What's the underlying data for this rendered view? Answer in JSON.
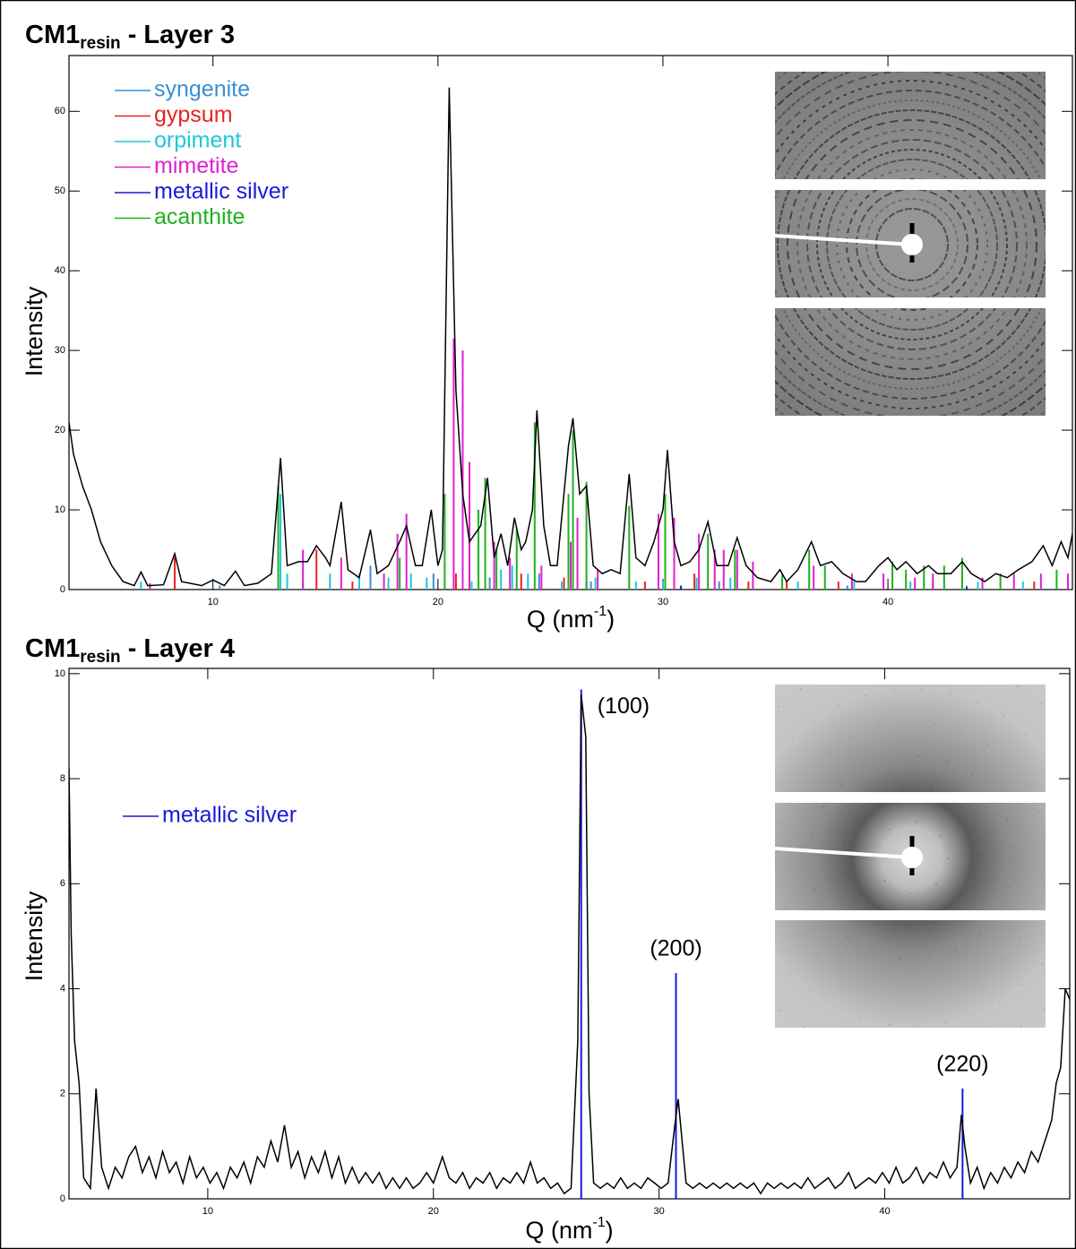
{
  "chart_data": [
    {
      "type": "line",
      "title": {
        "main": "CM1",
        "sub": "resin",
        "rest": " - Layer 3"
      },
      "x_label": {
        "main": "Q (nm",
        "sup": "-1",
        "rest": ")"
      },
      "y_label": "Intensity",
      "xlim": [
        3.6,
        48.2
      ],
      "ylim": [
        0,
        67
      ],
      "xticks": [
        10,
        20,
        30,
        40
      ],
      "yticks": [
        0,
        10,
        20,
        30,
        40,
        50,
        60
      ],
      "legend": "upper left",
      "series": [
        {
          "color": "#000000",
          "x": [
            3.6,
            3.8,
            4.2,
            4.6,
            5.0,
            5.5,
            6.0,
            6.5,
            6.8,
            7.1,
            7.8,
            8.3,
            8.6,
            9.5,
            10.0,
            10.5,
            11.0,
            11.4,
            12.0,
            12.6,
            13.0,
            13.3,
            13.8,
            14.2,
            14.6,
            15.0,
            15.2,
            15.7,
            16.0,
            16.5,
            17.0,
            17.3,
            17.8,
            18.3,
            18.6,
            19.0,
            19.3,
            19.7,
            20.0,
            20.2,
            20.5,
            20.8,
            21.1,
            21.4,
            21.9,
            22.2,
            22.5,
            22.8,
            23.1,
            23.4,
            23.7,
            23.9,
            24.2,
            24.4,
            24.7,
            25.0,
            25.3,
            25.8,
            26.0,
            26.3,
            26.6,
            26.9,
            27.3,
            27.7,
            28.1,
            28.5,
            28.8,
            29.2,
            29.6,
            30.0,
            30.2,
            30.5,
            30.8,
            31.2,
            31.6,
            32.0,
            32.4,
            32.9,
            33.3,
            33.7,
            34.2,
            34.8,
            35.2,
            35.5,
            36.0,
            36.6,
            37.0,
            37.5,
            38.0,
            38.6,
            39.0,
            39.6,
            40.0,
            40.4,
            40.8,
            41.3,
            41.8,
            42.2,
            42.8,
            43.3,
            43.7,
            44.3,
            44.8,
            45.3,
            45.8,
            46.4,
            46.9,
            47.3,
            47.7,
            48.0,
            48.2
          ],
          "values": [
            21,
            17,
            13,
            10,
            6,
            3,
            1,
            0.5,
            2.2,
            0.5,
            0.6,
            4.5,
            1,
            0.5,
            1.2,
            0.5,
            2.3,
            0.5,
            0.8,
            2,
            16.5,
            3,
            3.5,
            3.5,
            5.5,
            4,
            3,
            11,
            2.5,
            1.5,
            7.5,
            2,
            3,
            6,
            8,
            3,
            3,
            10,
            3,
            5,
            63,
            25,
            12,
            6,
            8,
            14,
            4,
            7,
            3,
            9,
            5,
            6,
            10,
            22.5,
            8,
            3,
            3,
            18,
            21.5,
            12,
            13,
            3,
            2,
            2.5,
            2,
            14.5,
            4,
            3,
            6,
            10,
            17.5,
            6,
            3,
            3.5,
            5,
            8.5,
            3,
            3,
            6.5,
            3,
            1.5,
            1,
            2.5,
            1,
            2.5,
            6,
            3,
            3.5,
            2,
            1,
            1,
            3,
            4,
            2.5,
            3.5,
            2,
            3,
            2,
            2,
            3.5,
            2,
            1,
            2,
            1.5,
            2.5,
            3.5,
            5.5,
            3,
            6,
            4,
            7
          ]
        },
        {
          "name": "syngenite",
          "color": "#3a8fd0",
          "type": "stem",
          "x": [
            10.3,
            14.0,
            17.0,
            19.8,
            22.3,
            24.5,
            26.8,
            30.5,
            32.5,
            38.2,
            43.5
          ],
          "values": [
            0.5,
            1,
            3,
            2,
            1.5,
            2,
            1,
            1.5,
            1,
            0.5,
            0.5
          ]
        },
        {
          "name": "gypsum",
          "color": "#e8231f",
          "type": "stem",
          "x": [
            8.3,
            14.6,
            16.2,
            20.8,
            23.7,
            25.6,
            29.2,
            31.4,
            33.8,
            35.5,
            37.8,
            42.0,
            46.5
          ],
          "values": [
            4,
            5,
            1,
            2,
            2,
            1.5,
            1,
            2,
            1,
            1,
            1,
            1,
            1
          ]
        },
        {
          "name": "orpiment",
          "color": "#1ec8d8",
          "type": "stem",
          "x": [
            6.8,
            13.0,
            13.3,
            15.2,
            16.5,
            17.8,
            18.8,
            19.5,
            21.5,
            22.8,
            23.3,
            24.0,
            25.5,
            27.0,
            28.8,
            30.0,
            31.5,
            33.0,
            36.0,
            38.5,
            41.0,
            44.0,
            46.0
          ],
          "values": [
            1,
            12,
            2,
            2,
            2,
            1.5,
            2,
            1.5,
            1,
            2.5,
            3,
            2,
            1,
            1.5,
            1,
            1,
            1.5,
            1.5,
            1,
            1,
            1,
            1,
            1
          ]
        },
        {
          "name": "mimetite",
          "color": "#e020d0",
          "type": "stem",
          "x": [
            7.2,
            14.0,
            15.7,
            17.6,
            18.2,
            18.6,
            20.7,
            21.1,
            21.4,
            22.5,
            23.2,
            24.6,
            25.9,
            26.2,
            27.1,
            29.8,
            30.5,
            31.6,
            32.3,
            32.7,
            33.3,
            34.0,
            36.7,
            38.4,
            39.8,
            41.2,
            42.0,
            44.2,
            45.6,
            46.8,
            48.0
          ],
          "values": [
            0.8,
            5,
            4,
            2,
            7,
            9.5,
            31.5,
            30,
            16,
            6,
            4,
            3,
            6,
            9,
            2.5,
            9.5,
            9,
            7,
            5,
            5,
            5,
            3.5,
            3,
            2,
            2,
            1.5,
            2,
            1.5,
            2,
            2,
            2
          ]
        },
        {
          "name": "metallic silver",
          "color": "#1a1ad8",
          "type": "stem",
          "x": [
            26.6,
            30.8,
            43.5
          ],
          "values": [
            1,
            0.5,
            0.3
          ]
        },
        {
          "name": "acanthite",
          "color": "#20b020",
          "type": "stem",
          "x": [
            12.9,
            18.3,
            20.3,
            21.8,
            22.1,
            22.6,
            23.5,
            24.3,
            25.8,
            26.0,
            26.6,
            28.5,
            30.1,
            32.0,
            33.2,
            35.3,
            36.5,
            37.2,
            40.2,
            40.8,
            41.6,
            42.5,
            43.3,
            45.0,
            47.5
          ],
          "values": [
            13,
            4,
            12,
            10,
            14,
            5,
            7.5,
            21,
            12,
            20,
            13.5,
            10.5,
            12,
            7,
            5,
            2,
            5,
            3,
            3.5,
            2.5,
            3,
            3,
            4,
            2,
            2.5
          ]
        }
      ]
    },
    {
      "type": "line",
      "title": {
        "main": "CM1",
        "sub": "resin",
        "rest": " - Layer 4"
      },
      "x_label": {
        "main": "Q (nm",
        "sup": "-1",
        "rest": ")"
      },
      "y_label": "Intensity",
      "xlim": [
        3.85,
        48.2
      ],
      "ylim": [
        0,
        10.1
      ],
      "xticks": [
        10,
        20,
        30,
        40
      ],
      "yticks": [
        0,
        2,
        4,
        6,
        8,
        10
      ],
      "legend": "upper left",
      "annotations": [
        "(100)",
        "(200)",
        "(220)"
      ],
      "series": [
        {
          "color": "#000000",
          "x": [
            3.85,
            3.95,
            4.1,
            4.3,
            4.5,
            4.8,
            5.05,
            5.3,
            5.6,
            5.9,
            6.2,
            6.5,
            6.8,
            7.1,
            7.4,
            7.7,
            8.0,
            8.3,
            8.6,
            8.9,
            9.2,
            9.5,
            9.8,
            10.1,
            10.4,
            10.7,
            11.0,
            11.3,
            11.6,
            11.9,
            12.2,
            12.5,
            12.8,
            13.1,
            13.4,
            13.7,
            14.0,
            14.3,
            14.6,
            14.9,
            15.2,
            15.5,
            15.8,
            16.1,
            16.4,
            16.7,
            17.0,
            17.3,
            17.6,
            17.9,
            18.2,
            18.5,
            18.8,
            19.1,
            19.4,
            19.7,
            20.0,
            20.4,
            20.7,
            21.0,
            21.3,
            21.6,
            21.9,
            22.2,
            22.5,
            22.8,
            23.1,
            23.4,
            23.7,
            24.0,
            24.3,
            24.6,
            24.9,
            25.2,
            25.5,
            25.8,
            26.1,
            26.4,
            26.55,
            26.75,
            26.9,
            27.1,
            27.4,
            27.7,
            28.0,
            28.3,
            28.6,
            28.9,
            29.2,
            29.5,
            29.8,
            30.1,
            30.4,
            30.7,
            30.85,
            31.0,
            31.2,
            31.5,
            31.8,
            32.1,
            32.4,
            32.7,
            33.0,
            33.3,
            33.6,
            33.9,
            34.2,
            34.5,
            34.8,
            35.1,
            35.4,
            35.7,
            36.0,
            36.3,
            36.6,
            36.9,
            37.2,
            37.5,
            37.8,
            38.1,
            38.4,
            38.7,
            39.0,
            39.3,
            39.6,
            39.9,
            40.2,
            40.5,
            40.8,
            41.1,
            41.4,
            41.7,
            42.0,
            42.3,
            42.6,
            42.9,
            43.2,
            43.4,
            43.55,
            43.8,
            44.1,
            44.4,
            44.7,
            45.0,
            45.3,
            45.6,
            45.9,
            46.2,
            46.5,
            46.8,
            47.1,
            47.4,
            47.6,
            47.8,
            48.0,
            48.2
          ],
          "values": [
            8.2,
            5,
            3,
            2.2,
            0.4,
            0.2,
            2.1,
            0.6,
            0.2,
            0.6,
            0.4,
            0.8,
            1.0,
            0.5,
            0.8,
            0.4,
            0.9,
            0.5,
            0.7,
            0.3,
            0.8,
            0.4,
            0.6,
            0.3,
            0.5,
            0.2,
            0.6,
            0.4,
            0.7,
            0.3,
            0.8,
            0.6,
            1.1,
            0.7,
            1.4,
            0.6,
            0.9,
            0.4,
            0.8,
            0.5,
            0.9,
            0.4,
            0.8,
            0.3,
            0.6,
            0.3,
            0.5,
            0.3,
            0.5,
            0.2,
            0.4,
            0.2,
            0.4,
            0.2,
            0.3,
            0.5,
            0.3,
            0.8,
            0.4,
            0.3,
            0.5,
            0.2,
            0.4,
            0.3,
            0.5,
            0.2,
            0.4,
            0.3,
            0.5,
            0.3,
            0.7,
            0.3,
            0.4,
            0.2,
            0.3,
            0.1,
            0.2,
            3,
            9.6,
            8.8,
            2,
            0.3,
            0.2,
            0.3,
            0.2,
            0.4,
            0.2,
            0.3,
            0.2,
            0.4,
            0.3,
            0.2,
            0.3,
            1.4,
            1.9,
            1.2,
            0.3,
            0.2,
            0.3,
            0.2,
            0.3,
            0.2,
            0.3,
            0.2,
            0.3,
            0.2,
            0.3,
            0.1,
            0.3,
            0.2,
            0.3,
            0.2,
            0.3,
            0.2,
            0.4,
            0.2,
            0.3,
            0.4,
            0.2,
            0.3,
            0.5,
            0.2,
            0.3,
            0.4,
            0.3,
            0.5,
            0.3,
            0.6,
            0.3,
            0.4,
            0.6,
            0.3,
            0.5,
            0.4,
            0.7,
            0.4,
            0.6,
            1.6,
            1.0,
            0.3,
            0.6,
            0.2,
            0.5,
            0.3,
            0.6,
            0.4,
            0.7,
            0.5,
            0.9,
            0.7,
            1.1,
            1.5,
            2.2,
            2.5,
            4,
            3.8
          ]
        },
        {
          "name": "metallic silver",
          "color": "#1a1ad8",
          "type": "stem",
          "x": [
            26.55,
            30.75,
            43.45
          ],
          "values": [
            9.7,
            4.3,
            2.1
          ]
        }
      ]
    }
  ]
}
